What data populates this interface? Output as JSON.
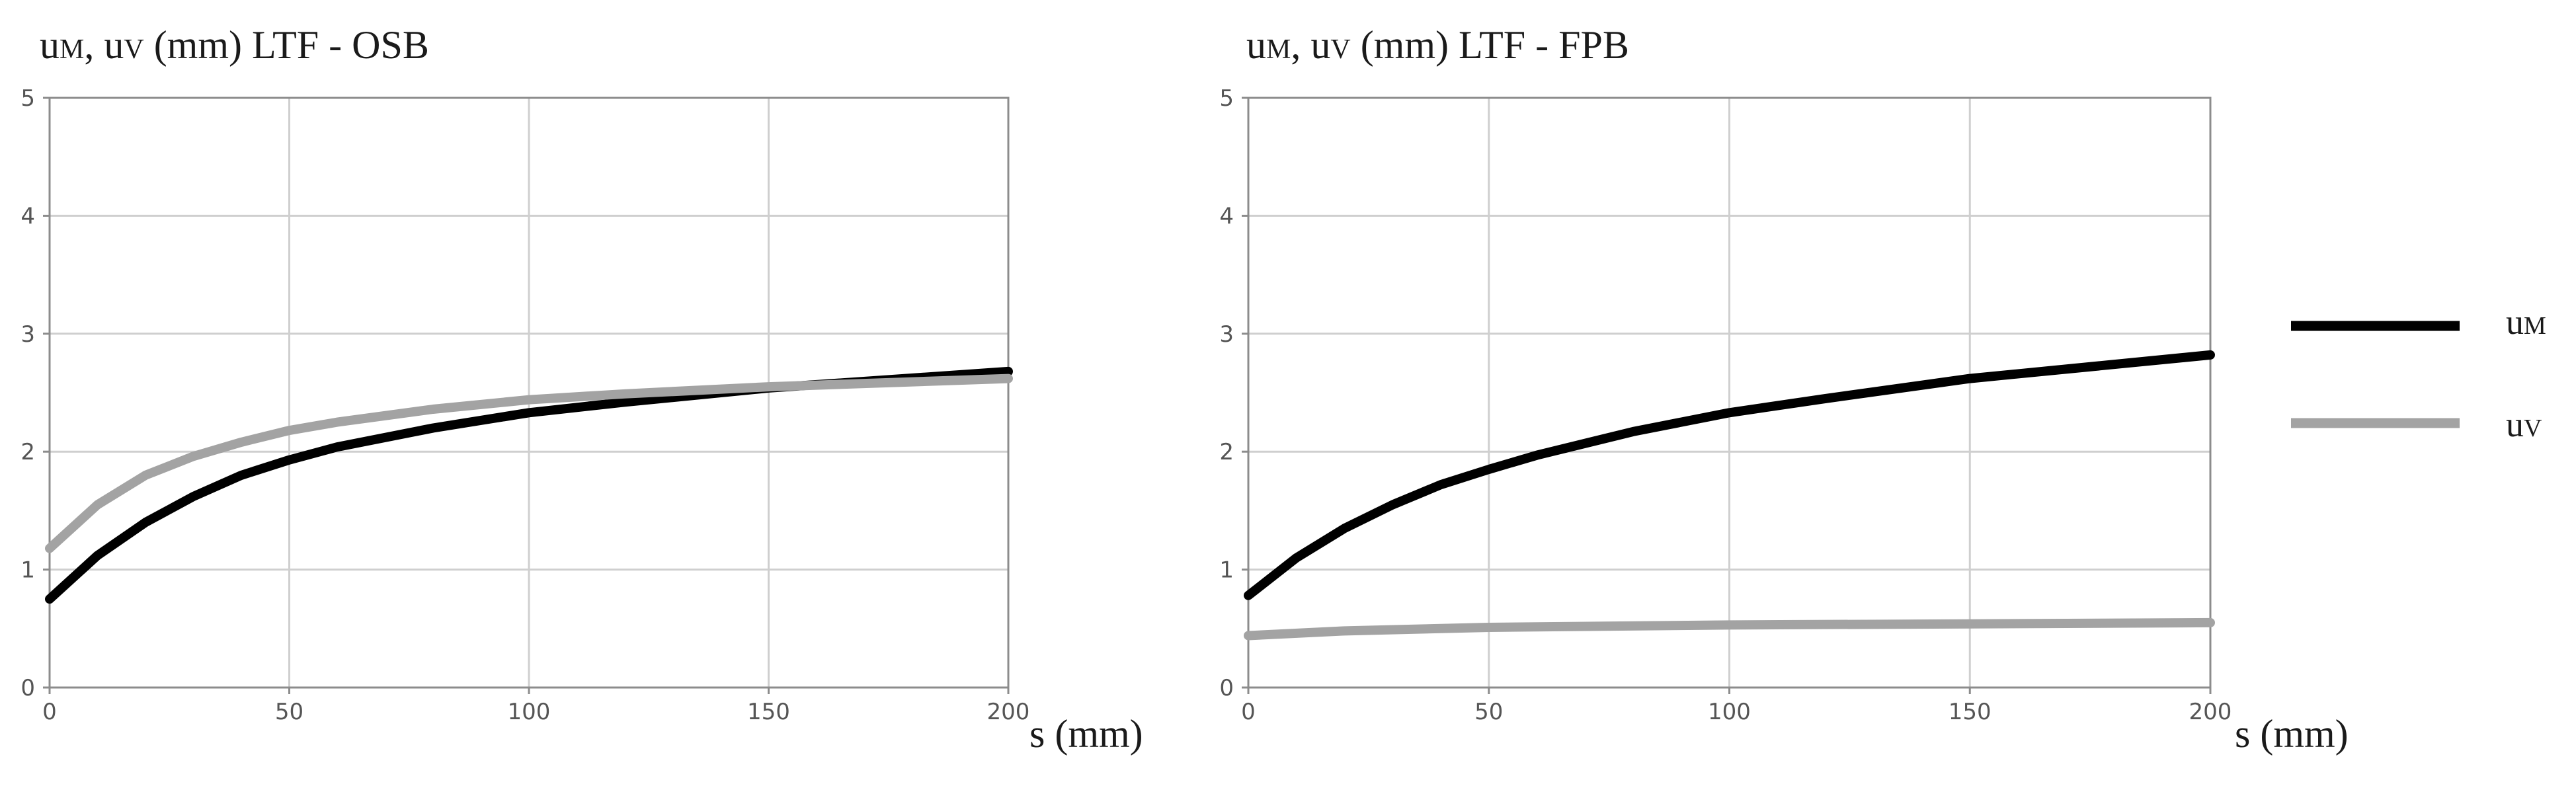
{
  "colors": {
    "uM": "#000000",
    "uV": "#a3a3a3",
    "grid": "#cfcfcf",
    "frame": "#8c8c8c"
  },
  "legend": {
    "items": [
      {
        "key": "uM",
        "main": "u",
        "sub": "M"
      },
      {
        "key": "uV",
        "main": "u",
        "sub": "V"
      }
    ]
  },
  "chart_data": [
    {
      "type": "line",
      "title": {
        "p1": "u",
        "s1": "M",
        "p2": ", u",
        "s2": "V",
        "p3": " (mm) LTF - OSB"
      },
      "xlabel": "s (mm)",
      "ylabel": "",
      "xlim": [
        0,
        200
      ],
      "ylim": [
        0,
        5
      ],
      "xticks": [
        0,
        50,
        100,
        150,
        200
      ],
      "yticks": [
        0,
        1,
        2,
        3,
        4,
        5
      ],
      "grid": true,
      "series": [
        {
          "key": "uM",
          "x": [
            0,
            10,
            20,
            30,
            40,
            50,
            60,
            80,
            100,
            120,
            150,
            200
          ],
          "y": [
            0.75,
            1.12,
            1.4,
            1.62,
            1.8,
            1.93,
            2.04,
            2.2,
            2.33,
            2.42,
            2.54,
            2.68
          ]
        },
        {
          "key": "uV",
          "x": [
            0,
            10,
            20,
            30,
            40,
            50,
            60,
            80,
            100,
            120,
            150,
            200
          ],
          "y": [
            1.18,
            1.55,
            1.8,
            1.96,
            2.08,
            2.18,
            2.25,
            2.36,
            2.44,
            2.49,
            2.55,
            2.62
          ]
        }
      ]
    },
    {
      "type": "line",
      "title": {
        "p1": "u",
        "s1": "M",
        "p2": ", u",
        "s2": "V",
        "p3": " (mm) LTF - FPB"
      },
      "xlabel": "s (mm)",
      "ylabel": "",
      "xlim": [
        0,
        200
      ],
      "ylim": [
        0,
        5
      ],
      "xticks": [
        0,
        50,
        100,
        150,
        200
      ],
      "yticks": [
        0,
        1,
        2,
        3,
        4,
        5
      ],
      "grid": true,
      "series": [
        {
          "key": "uM",
          "x": [
            0,
            10,
            20,
            30,
            40,
            50,
            60,
            80,
            100,
            120,
            150,
            200
          ],
          "y": [
            0.78,
            1.1,
            1.35,
            1.55,
            1.72,
            1.85,
            1.97,
            2.17,
            2.33,
            2.45,
            2.62,
            2.82
          ]
        },
        {
          "key": "uV",
          "x": [
            0,
            20,
            50,
            100,
            150,
            200
          ],
          "y": [
            0.44,
            0.48,
            0.51,
            0.53,
            0.54,
            0.55
          ]
        }
      ]
    }
  ]
}
